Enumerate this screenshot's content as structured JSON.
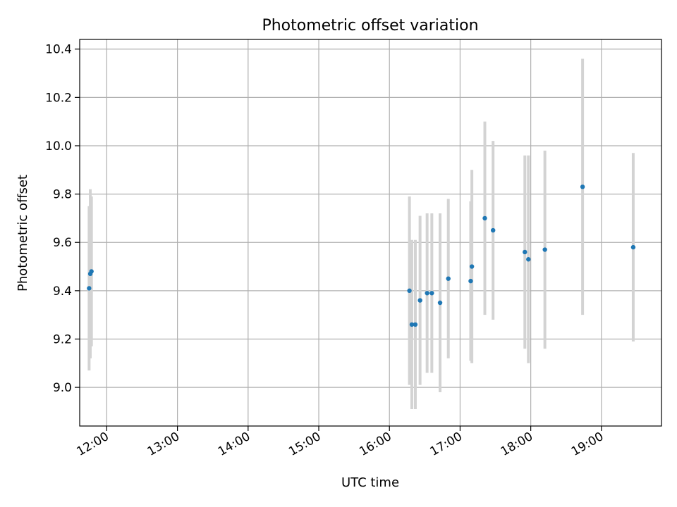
{
  "chart_data": {
    "type": "scatter",
    "title": "Photometric offset variation",
    "xlabel": "UTC time",
    "ylabel": "Photometric offset",
    "x_axis": {
      "kind": "time",
      "range": [
        "11:37",
        "19:51"
      ],
      "ticks": [
        "12:00",
        "13:00",
        "14:00",
        "15:00",
        "16:00",
        "17:00",
        "18:00",
        "19:00"
      ]
    },
    "y_axis": {
      "range": [
        8.84,
        10.44
      ],
      "ticks": [
        "9.0",
        "9.2",
        "9.4",
        "9.6",
        "9.8",
        "10.0",
        "10.2",
        "10.4"
      ]
    },
    "grid": true,
    "series": [
      {
        "marker_color": "#1f77b4",
        "errorbar_color": "#d3d3d3",
        "points": [
          {
            "x": "11:45",
            "y": 9.41,
            "err": 0.34
          },
          {
            "x": "11:46",
            "y": 9.47,
            "err": 0.35
          },
          {
            "x": "11:47",
            "y": 9.48,
            "err": 0.31
          },
          {
            "x": "16:17",
            "y": 9.4,
            "err": 0.39
          },
          {
            "x": "16:19",
            "y": 9.26,
            "err": 0.35
          },
          {
            "x": "16:22",
            "y": 9.26,
            "err": 0.35
          },
          {
            "x": "16:26",
            "y": 9.36,
            "err": 0.35
          },
          {
            "x": "16:32",
            "y": 9.39,
            "err": 0.33
          },
          {
            "x": "16:36",
            "y": 9.39,
            "err": 0.33
          },
          {
            "x": "16:43",
            "y": 9.35,
            "err": 0.37
          },
          {
            "x": "16:50",
            "y": 9.45,
            "err": 0.33
          },
          {
            "x": "17:09",
            "y": 9.44,
            "err": 0.33
          },
          {
            "x": "17:10",
            "y": 9.5,
            "err": 0.4
          },
          {
            "x": "17:21",
            "y": 9.7,
            "err": 0.4
          },
          {
            "x": "17:28",
            "y": 9.65,
            "err": 0.37
          },
          {
            "x": "17:55",
            "y": 9.56,
            "err": 0.4
          },
          {
            "x": "17:58",
            "y": 9.53,
            "err": 0.43
          },
          {
            "x": "18:12",
            "y": 9.57,
            "err": 0.41
          },
          {
            "x": "18:44",
            "y": 9.83,
            "err": 0.53
          },
          {
            "x": "19:27",
            "y": 9.58,
            "err": 0.39
          }
        ]
      }
    ]
  }
}
